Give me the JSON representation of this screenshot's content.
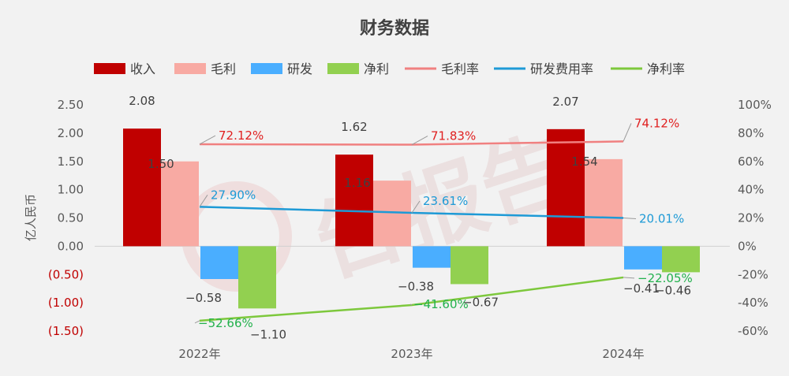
{
  "chart_data": {
    "type": "bar",
    "title": "财务数据",
    "ylabel": "亿人民币",
    "categories": [
      "2022年",
      "2023年",
      "2024年"
    ],
    "ylim": [
      -1.5,
      2.5
    ],
    "y2lim": [
      -0.6,
      1.0
    ],
    "y_ticks": [
      "2.50",
      "2.00",
      "1.50",
      "1.00",
      "0.50",
      "0.00",
      "(0.50)",
      "(1.00)",
      "(1.50)"
    ],
    "y2_ticks": [
      "100%",
      "80%",
      "60%",
      "40%",
      "20%",
      "0%",
      "-20%",
      "-40%",
      "-60%"
    ],
    "bar_series": [
      {
        "name": "收入",
        "color": "#c00000",
        "values": [
          2.08,
          1.62,
          2.07
        ],
        "labels": [
          "2.08",
          "1.62",
          "2.07"
        ]
      },
      {
        "name": "毛利",
        "color": "#f8aaa3",
        "values": [
          1.5,
          1.16,
          1.54
        ],
        "labels": [
          "1.50",
          "1.16",
          "1.54"
        ]
      },
      {
        "name": "研发",
        "color": "#4aaeff",
        "values": [
          -0.58,
          -0.38,
          -0.41
        ],
        "labels": [
          "−0.58",
          "−0.38",
          "−0.41"
        ]
      },
      {
        "name": "净利",
        "color": "#92d050",
        "values": [
          -1.1,
          -0.67,
          -0.46
        ],
        "labels": [
          "−1.10",
          "−0.67",
          "−0.46"
        ]
      }
    ],
    "line_series": [
      {
        "name": "毛利率",
        "color": "#f08080",
        "label_color": "#e02020",
        "values": [
          0.7212,
          0.7183,
          0.7412
        ],
        "labels": [
          "72.12%",
          "71.83%",
          "74.12%"
        ]
      },
      {
        "name": "研发费用率",
        "color": "#1e9ad6",
        "label_color": "#1e9ad6",
        "values": [
          0.279,
          0.2361,
          0.2001
        ],
        "labels": [
          "27.90%",
          "23.61%",
          "20.01%"
        ]
      },
      {
        "name": "净利率",
        "color": "#7dc83c",
        "label_color": "#22b14c",
        "values": [
          -0.5266,
          -0.416,
          -0.2205
        ],
        "labels": [
          "−52.66%",
          "−41.60%",
          "−22.05%"
        ]
      }
    ],
    "watermark": "告报告"
  }
}
